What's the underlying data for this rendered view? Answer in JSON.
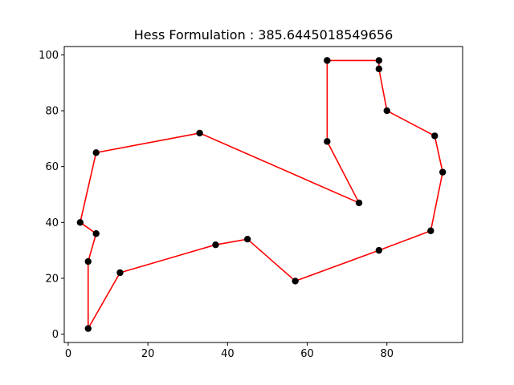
{
  "chart_data": {
    "type": "line",
    "title": "Hess Formulation : 385.6445018549656",
    "xlabel": "",
    "ylabel": "",
    "xlim": [
      -1,
      99
    ],
    "ylim": [
      -3,
      103
    ],
    "xticks": [
      0,
      20,
      40,
      60,
      80
    ],
    "yticks": [
      0,
      20,
      40,
      60,
      80,
      100
    ],
    "xtick_labels": [
      "0",
      "20",
      "40",
      "60",
      "80"
    ],
    "ytick_labels": [
      "0",
      "20",
      "40",
      "60",
      "80",
      "100"
    ],
    "grid": false,
    "line_color": "#ff0000",
    "marker_color": "#000000",
    "points": [
      {
        "x": 65,
        "y": 98
      },
      {
        "x": 78,
        "y": 98
      },
      {
        "x": 78,
        "y": 95
      },
      {
        "x": 80,
        "y": 80
      },
      {
        "x": 92,
        "y": 71
      },
      {
        "x": 94,
        "y": 58
      },
      {
        "x": 91,
        "y": 37
      },
      {
        "x": 78,
        "y": 30
      },
      {
        "x": 57,
        "y": 19
      },
      {
        "x": 45,
        "y": 34
      },
      {
        "x": 37,
        "y": 32
      },
      {
        "x": 13,
        "y": 22
      },
      {
        "x": 5,
        "y": 2
      },
      {
        "x": 5,
        "y": 26
      },
      {
        "x": 7,
        "y": 36
      },
      {
        "x": 3,
        "y": 40
      },
      {
        "x": 7,
        "y": 65
      },
      {
        "x": 33,
        "y": 72
      },
      {
        "x": 73,
        "y": 47
      },
      {
        "x": 65,
        "y": 69
      },
      {
        "x": 65,
        "y": 98
      }
    ]
  }
}
